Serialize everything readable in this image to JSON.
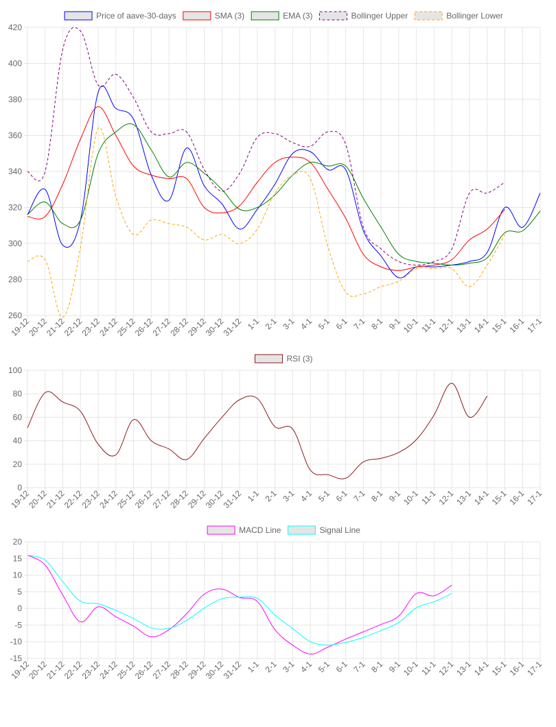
{
  "chart_data": [
    {
      "type": "line",
      "id": "price",
      "categories": [
        "19-12",
        "20-12",
        "21-12",
        "22-12",
        "23-12",
        "24-12",
        "25-12",
        "26-12",
        "27-12",
        "28-12",
        "29-12",
        "30-12",
        "31-12",
        "1-1",
        "2-1",
        "3-1",
        "4-1",
        "5-1",
        "6-1",
        "7-1",
        "8-1",
        "9-1",
        "10-1",
        "11-1",
        "12-1",
        "13-1",
        "14-1",
        "15-1",
        "16-1",
        "17-1"
      ],
      "ylim": [
        260,
        420
      ],
      "ystep": 20,
      "series": [
        {
          "name": "Price of aave-30-days",
          "color": "#0000ff",
          "dash": false,
          "values": [
            316,
            330,
            299,
            313,
            384,
            375,
            369,
            338,
            324,
            353,
            332,
            322,
            308,
            319,
            333,
            350,
            351,
            341,
            341,
            307,
            293,
            281,
            287,
            287,
            288,
            290,
            295,
            320,
            309,
            328
          ]
        },
        {
          "name": "SMA (3)",
          "color": "#ff0000",
          "dash": false,
          "values": [
            315,
            315,
            333,
            358,
            376,
            360,
            343,
            338,
            336,
            336,
            320,
            317,
            321,
            334,
            345,
            348,
            345,
            330,
            314,
            294,
            287,
            285,
            287,
            288,
            291,
            302,
            308,
            319,
            null,
            null
          ]
        },
        {
          "name": "EMA (3)",
          "color": "#008000",
          "dash": false,
          "values": [
            316,
            323,
            311,
            313,
            350,
            362,
            366,
            352,
            337,
            345,
            339,
            330,
            319,
            320,
            327,
            338,
            345,
            343,
            343,
            325,
            309,
            294,
            290,
            289,
            288,
            289,
            292,
            306,
            307,
            318
          ]
        },
        {
          "name": "Bollinger Upper",
          "color": "#800080",
          "dash": true,
          "values": [
            340,
            340,
            408,
            418,
            388,
            394,
            381,
            362,
            361,
            362,
            341,
            329,
            339,
            359,
            361,
            356,
            354,
            362,
            355,
            309,
            297,
            290,
            288,
            290,
            297,
            328,
            328,
            334,
            null,
            null
          ]
        },
        {
          "name": "Bollinger Lower",
          "color": "#ffa500",
          "dash": true,
          "values": [
            290,
            291,
            259,
            298,
            364,
            326,
            305,
            313,
            311,
            309,
            302,
            305,
            300,
            308,
            328,
            338,
            336,
            298,
            273,
            272,
            276,
            279,
            286,
            286,
            286,
            276,
            288,
            305,
            null,
            null
          ]
        }
      ]
    },
    {
      "type": "line",
      "id": "rsi",
      "categories": [
        "19-12",
        "20-12",
        "21-12",
        "22-12",
        "23-12",
        "24-12",
        "25-12",
        "26-12",
        "27-12",
        "28-12",
        "29-12",
        "30-12",
        "31-12",
        "1-1",
        "2-1",
        "3-1",
        "4-1",
        "5-1",
        "6-1",
        "7-1",
        "8-1",
        "9-1",
        "10-1",
        "11-1",
        "12-1",
        "13-1",
        "14-1",
        "15-1",
        "16-1",
        "17-1"
      ],
      "ylim": [
        0,
        100
      ],
      "ystep": 20,
      "series": [
        {
          "name": "RSI (3)",
          "color": "#8b1a1a",
          "dash": false,
          "values": [
            51,
            81,
            73,
            65,
            37,
            28,
            58,
            40,
            33,
            24,
            42,
            60,
            75,
            76,
            52,
            50,
            15,
            11,
            8,
            22,
            25,
            30,
            41,
            62,
            89,
            60,
            78,
            null,
            null,
            null
          ]
        }
      ]
    },
    {
      "type": "line",
      "id": "macd",
      "categories": [
        "19-12",
        "20-12",
        "21-12",
        "22-12",
        "23-12",
        "24-12",
        "25-12",
        "26-12",
        "27-12",
        "28-12",
        "29-12",
        "30-12",
        "31-12",
        "1-1",
        "2-1",
        "3-1",
        "4-1",
        "5-1",
        "6-1",
        "7-1",
        "8-1",
        "9-1",
        "10-1",
        "11-1",
        "12-1",
        "13-1",
        "14-1",
        "15-1",
        "16-1",
        "17-1"
      ],
      "ylim": [
        -15,
        20
      ],
      "ystep": 5,
      "series": [
        {
          "name": "MACD Line",
          "color": "#ff00ff",
          "dash": false,
          "values": [
            16,
            13,
            4,
            -4,
            0.5,
            -2.5,
            -5.3,
            -8.5,
            -6.4,
            -1.6,
            4.3,
            5.8,
            3.3,
            2.1,
            -6.4,
            -11,
            -13.7,
            -11.6,
            -9.2,
            -7,
            -4.8,
            -2.3,
            4.5,
            3.8,
            7,
            null,
            null,
            null,
            null,
            null
          ]
        },
        {
          "name": "Signal Line",
          "color": "#00ffff",
          "dash": false,
          "values": [
            16,
            14.5,
            8,
            2.2,
            1.4,
            -0.6,
            -3,
            -5.8,
            -6,
            -3.6,
            0.1,
            2.9,
            3.4,
            3,
            -2,
            -6,
            -10,
            -11,
            -10.2,
            -8.7,
            -6.6,
            -4.2,
            0.2,
            2,
            4.5,
            null,
            null,
            null,
            null,
            null
          ]
        }
      ]
    }
  ]
}
